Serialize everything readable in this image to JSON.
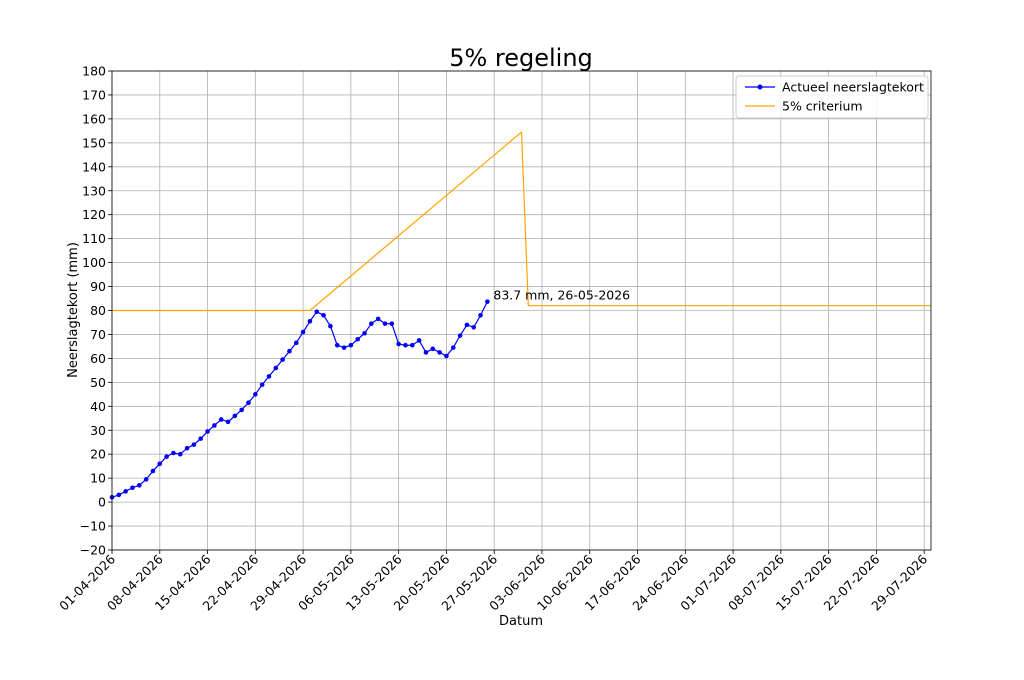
{
  "chart_data": {
    "type": "line",
    "title": "5% regeling",
    "xlabel": "Datum",
    "ylabel": "Neerslagtekort (mm)",
    "ylim": [
      -20,
      180
    ],
    "yticks": [
      -20,
      -10,
      0,
      10,
      20,
      30,
      40,
      50,
      60,
      70,
      80,
      90,
      100,
      110,
      120,
      130,
      140,
      150,
      160,
      170,
      180
    ],
    "xlim": [
      "01-04-2026",
      "30-07-2026"
    ],
    "xticks": [
      "01-04-2026",
      "08-04-2026",
      "15-04-2026",
      "22-04-2026",
      "29-04-2026",
      "06-05-2026",
      "13-05-2026",
      "20-05-2026",
      "27-05-2026",
      "03-06-2026",
      "10-06-2026",
      "17-06-2026",
      "24-06-2026",
      "01-07-2026",
      "08-07-2026",
      "15-07-2026",
      "22-07-2026",
      "29-07-2026"
    ],
    "grid": true,
    "legend_position": "top-right",
    "series": [
      {
        "name": "Actueel neerslagtekort",
        "color": "#0000ff",
        "marker": "circle",
        "x": [
          "01-04-2026",
          "02-04-2026",
          "03-04-2026",
          "04-04-2026",
          "05-04-2026",
          "06-04-2026",
          "07-04-2026",
          "08-04-2026",
          "09-04-2026",
          "10-04-2026",
          "11-04-2026",
          "12-04-2026",
          "13-04-2026",
          "14-04-2026",
          "15-04-2026",
          "16-04-2026",
          "17-04-2026",
          "18-04-2026",
          "19-04-2026",
          "20-04-2026",
          "21-04-2026",
          "22-04-2026",
          "23-04-2026",
          "24-04-2026",
          "25-04-2026",
          "26-04-2026",
          "27-04-2026",
          "28-04-2026",
          "29-04-2026",
          "30-04-2026",
          "01-05-2026",
          "02-05-2026",
          "03-05-2026",
          "04-05-2026",
          "05-05-2026",
          "06-05-2026",
          "07-05-2026",
          "08-05-2026",
          "09-05-2026",
          "10-05-2026",
          "11-05-2026",
          "12-05-2026",
          "13-05-2026",
          "14-05-2026",
          "15-05-2026",
          "16-05-2026",
          "17-05-2026",
          "18-05-2026",
          "19-05-2026",
          "20-05-2026",
          "21-05-2026",
          "22-05-2026",
          "23-05-2026",
          "24-05-2026",
          "25-05-2026",
          "26-05-2026"
        ],
        "y": [
          2.0,
          3.0,
          4.5,
          6.0,
          7.0,
          9.5,
          13.0,
          16.0,
          19.0,
          20.5,
          20.0,
          22.5,
          24.0,
          26.5,
          29.5,
          32.0,
          34.5,
          33.5,
          36.0,
          38.5,
          41.5,
          45.0,
          49.0,
          52.5,
          56.0,
          59.5,
          63.0,
          66.5,
          71.0,
          75.5,
          79.5,
          78.0,
          73.5,
          65.5,
          64.5,
          65.5,
          68.0,
          70.5,
          74.5,
          76.5,
          74.5,
          74.5,
          66.0,
          65.5,
          65.5,
          67.5,
          62.5,
          64.0,
          62.5,
          61.0,
          64.5,
          69.5,
          74.0,
          73.0,
          78.0,
          83.7
        ]
      },
      {
        "name": "5% criterium",
        "color": "#ffa500",
        "marker": "none",
        "x": [
          "01-04-2026",
          "30-04-2026",
          "31-05-2026",
          "01-06-2026",
          "30-07-2026"
        ],
        "y": [
          80,
          80,
          154.5,
          82,
          82
        ]
      }
    ],
    "annotations": [
      {
        "text": "83.7 mm, 26-05-2026",
        "x": "26-05-2026",
        "y": 83.7
      }
    ]
  }
}
